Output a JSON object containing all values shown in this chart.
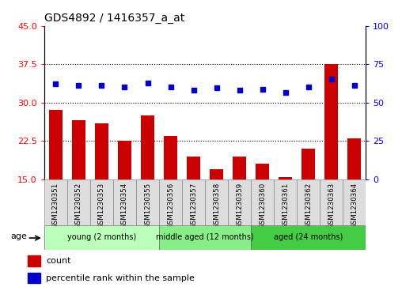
{
  "title": "GDS4892 / 1416357_a_at",
  "samples": [
    "GSM1230351",
    "GSM1230352",
    "GSM1230353",
    "GSM1230354",
    "GSM1230355",
    "GSM1230356",
    "GSM1230357",
    "GSM1230358",
    "GSM1230359",
    "GSM1230360",
    "GSM1230361",
    "GSM1230362",
    "GSM1230363",
    "GSM1230364"
  ],
  "counts": [
    28.5,
    26.5,
    26.0,
    22.5,
    27.5,
    23.5,
    19.5,
    17.0,
    19.5,
    18.0,
    15.5,
    21.0,
    37.5,
    23.0
  ],
  "percentiles": [
    62.0,
    61.0,
    61.0,
    60.0,
    63.0,
    60.0,
    58.0,
    59.5,
    58.0,
    58.5,
    56.5,
    60.0,
    65.5,
    61.0
  ],
  "ylim_left": [
    15,
    45
  ],
  "ylim_right": [
    0,
    100
  ],
  "yticks_left": [
    15,
    22.5,
    30,
    37.5,
    45
  ],
  "yticks_right": [
    0,
    25,
    50,
    75,
    100
  ],
  "bar_color": "#cc0000",
  "dot_color": "#0000cc",
  "groups": [
    {
      "label": "young (2 months)",
      "start": 0,
      "end": 5
    },
    {
      "label": "middle aged (12 months)",
      "start": 5,
      "end": 9
    },
    {
      "label": "aged (24 months)",
      "start": 9,
      "end": 14
    }
  ],
  "group_colors": [
    "#bbffbb",
    "#88ee88",
    "#44cc44"
  ],
  "hlines": [
    22.5,
    30.0,
    37.5
  ],
  "legend_count": "count",
  "legend_pct": "percentile rank within the sample"
}
